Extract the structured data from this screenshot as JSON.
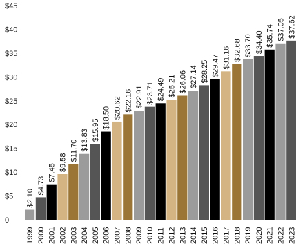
{
  "chart_data": {
    "type": "bar",
    "title": "",
    "xlabel": "",
    "ylabel": "",
    "ylim": [
      0,
      45
    ],
    "yticks": [
      "0",
      "$5",
      "$10",
      "$15",
      "$20",
      "$25",
      "$30",
      "$35",
      "$40",
      "$45"
    ],
    "grid": false,
    "legend": "none",
    "categories": [
      "1999",
      "2000",
      "2001",
      "2002",
      "2003",
      "2004",
      "2005",
      "2006",
      "2007",
      "2008",
      "2009",
      "2010",
      "2011",
      "2012",
      "2013",
      "2014",
      "2015",
      "2016",
      "2017",
      "2018",
      "2019",
      "2020",
      "2021",
      "2022",
      "2023"
    ],
    "values": [
      2.1,
      4.73,
      7.45,
      9.58,
      11.7,
      13.83,
      15.95,
      18.5,
      20.62,
      22.16,
      22.91,
      23.71,
      24.49,
      25.21,
      26.06,
      27.14,
      28.25,
      29.47,
      31.16,
      32.68,
      33.7,
      34.4,
      35.74,
      37.05,
      37.62
    ],
    "data_labels": [
      "$2.10",
      "$4.73",
      "$7.45",
      "$9.58",
      "$11.70",
      "$13.83",
      "$15.95",
      "$18.50",
      "$20.62",
      "$22.16",
      "$22.91",
      "$23.71",
      "$24.49",
      "$25.21",
      "$26.06",
      "$27.14",
      "$28.25",
      "$29.47",
      "$31.16",
      "$32.68",
      "$33.70",
      "$34.40",
      "$35.74",
      "$37.05",
      "$37.62"
    ],
    "colors": [
      "#9b9b9b",
      "#555555",
      "#000000",
      "#d4b483",
      "#9a7535",
      "#9b9b9b",
      "#555555",
      "#000000",
      "#d4b483",
      "#9a7535",
      "#9b9b9b",
      "#555555",
      "#000000",
      "#d4b483",
      "#9a7535",
      "#9b9b9b",
      "#555555",
      "#000000",
      "#d4b483",
      "#9a7535",
      "#9b9b9b",
      "#555555",
      "#000000",
      "#9b9b9b",
      "#555555"
    ]
  }
}
